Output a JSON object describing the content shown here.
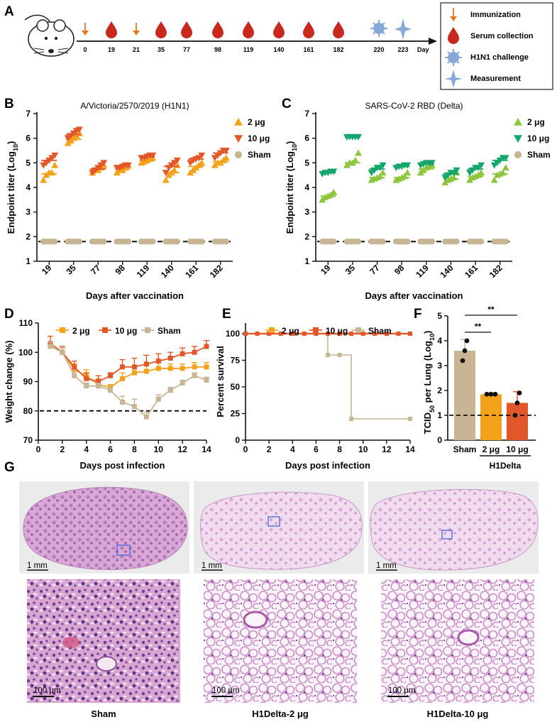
{
  "panels": {
    "A": "A",
    "B": "B",
    "C": "C",
    "D": "D",
    "E": "E",
    "F": "F",
    "G": "G"
  },
  "timeline": {
    "ticks": [
      "0",
      "19",
      "21",
      "35",
      "77",
      "98",
      "119",
      "140",
      "161",
      "182",
      "220",
      "223"
    ],
    "immunization_days": [
      "0",
      "21"
    ],
    "serum_days": [
      "19",
      "35",
      "77",
      "98",
      "119",
      "140",
      "161",
      "182"
    ],
    "challenge_day": "220",
    "measurement_day": "223",
    "day_label": "Day",
    "legend": [
      "Immunization",
      "Serum collection",
      "H1N1 challenge",
      "Measurement"
    ]
  },
  "colors": {
    "orange_2ug": "#F4A21A",
    "red_10ug": "#E2572A",
    "green_2ug": "#8CC63F",
    "teal_10ug": "#14A66B",
    "sham": "#C7B594",
    "blood": "#C8281E",
    "virus": "#86A9D8"
  },
  "chart_data": [
    {
      "panel": "B",
      "type": "scatter",
      "title": "A/Victoria/2570/2019 (H1N1)",
      "xlabel": "Days after vaccination",
      "ylabel_main": "Endpoint titer (Log",
      "ylabel_sub": "10",
      "ylabel_end": ")",
      "categories": [
        "19",
        "35",
        "77",
        "98",
        "119",
        "140",
        "161",
        "182"
      ],
      "ylim": [
        1,
        7
      ],
      "yticks": [
        "1",
        "2",
        "3",
        "4",
        "5",
        "6",
        "7"
      ],
      "detection_limit": 1.8,
      "series": [
        {
          "name": "2 μg",
          "marker": "triangle-up",
          "color": "#F4A21A",
          "means": [
            4.55,
            5.95,
            4.75,
            4.75,
            5.1,
            4.6,
            4.85,
            5.05
          ],
          "points": [
            [
              4.3,
              4.5,
              4.6,
              4.6,
              4.9
            ],
            [
              5.8,
              5.9,
              6.0,
              6.1,
              6.2
            ],
            [
              4.6,
              4.7,
              4.7,
              4.8,
              4.9
            ],
            [
              4.6,
              4.7,
              4.7,
              4.8,
              4.9
            ],
            [
              5.0,
              5.05,
              5.1,
              5.15,
              5.2
            ],
            [
              4.3,
              4.5,
              4.6,
              4.7,
              4.9
            ],
            [
              4.6,
              4.7,
              4.8,
              4.9,
              5.0
            ],
            [
              4.9,
              5.0,
              5.0,
              5.1,
              5.2
            ]
          ]
        },
        {
          "name": "10 μg",
          "marker": "triangle-down",
          "color": "#E2572A",
          "means": [
            5.1,
            6.15,
            4.75,
            4.85,
            5.25,
            4.85,
            5.15,
            5.4
          ],
          "points": [
            [
              4.9,
              5.0,
              5.1,
              5.2,
              5.3
            ],
            [
              6.0,
              6.1,
              6.2,
              6.3,
              6.35
            ],
            [
              4.6,
              4.7,
              4.8,
              4.9,
              5.0
            ],
            [
              4.8,
              4.8,
              4.85,
              4.9,
              4.9
            ],
            [
              5.2,
              5.2,
              5.25,
              5.3,
              5.3
            ],
            [
              4.6,
              4.8,
              4.9,
              5.0,
              5.1
            ],
            [
              5.0,
              5.1,
              5.15,
              5.2,
              5.3
            ],
            [
              5.2,
              5.3,
              5.4,
              5.5,
              5.5
            ]
          ]
        },
        {
          "name": "Sham",
          "marker": "circle",
          "color": "#C7B594",
          "means": [
            1.8,
            1.8,
            1.8,
            1.8,
            1.8,
            1.8,
            1.8,
            1.8
          ],
          "points": [
            [
              1.8,
              1.8,
              1.8,
              1.8,
              1.8
            ],
            [
              1.8,
              1.8,
              1.8,
              1.8,
              1.8
            ],
            [
              1.8,
              1.8,
              1.8,
              1.8,
              1.8
            ],
            [
              1.8,
              1.8,
              1.8,
              1.8,
              1.8
            ],
            [
              1.8,
              1.8,
              1.8,
              1.8,
              1.8
            ],
            [
              1.8,
              1.8,
              1.8,
              1.8,
              1.8
            ],
            [
              1.8,
              1.8,
              1.8,
              1.8,
              1.8
            ],
            [
              1.8,
              1.8,
              1.8,
              1.8,
              1.8
            ]
          ]
        }
      ]
    },
    {
      "panel": "C",
      "type": "scatter",
      "title": "SARS-CoV-2 RBD (Delta)",
      "xlabel": "Days after vaccination",
      "ylabel_main": "Endpoint titer (Log",
      "ylabel_sub": "10",
      "ylabel_end": ")",
      "categories": [
        "19",
        "35",
        "77",
        "98",
        "119",
        "140",
        "161",
        "182"
      ],
      "ylim": [
        1,
        7
      ],
      "yticks": [
        "1",
        "2",
        "3",
        "4",
        "5",
        "6",
        "7"
      ],
      "detection_limit": 1.8,
      "series": [
        {
          "name": "2 μg",
          "marker": "triangle-up",
          "color": "#8CC63F",
          "means": [
            3.65,
            5.0,
            4.4,
            4.4,
            4.75,
            4.35,
            4.45,
            4.55
          ],
          "points": [
            [
              3.5,
              3.6,
              3.65,
              3.7,
              3.8
            ],
            [
              4.9,
              5.0,
              5.0,
              5.1,
              5.4
            ],
            [
              4.3,
              4.35,
              4.4,
              4.45,
              4.6
            ],
            [
              4.3,
              4.35,
              4.4,
              4.45,
              4.6
            ],
            [
              4.6,
              4.7,
              4.8,
              4.85,
              4.9
            ],
            [
              4.2,
              4.3,
              4.35,
              4.4,
              4.6
            ],
            [
              4.3,
              4.4,
              4.45,
              4.5,
              4.6
            ],
            [
              4.3,
              4.5,
              4.55,
              4.6,
              4.8
            ]
          ]
        },
        {
          "name": "10 μg",
          "marker": "triangle-down",
          "color": "#14A66B",
          "means": [
            4.6,
            6.05,
            4.75,
            4.85,
            4.95,
            4.55,
            4.75,
            5.1
          ],
          "points": [
            [
              4.55,
              4.6,
              4.6,
              4.65,
              4.65
            ],
            [
              6.05,
              6.05,
              6.05,
              6.05,
              6.05
            ],
            [
              4.6,
              4.7,
              4.8,
              4.8,
              4.9
            ],
            [
              4.8,
              4.85,
              4.85,
              4.9,
              4.9
            ],
            [
              4.9,
              4.95,
              5.0,
              5.0,
              5.0
            ],
            [
              4.4,
              4.5,
              4.6,
              4.6,
              4.7
            ],
            [
              4.6,
              4.7,
              4.8,
              4.8,
              4.9
            ],
            [
              4.9,
              5.0,
              5.1,
              5.2,
              5.2
            ]
          ]
        },
        {
          "name": "Sham",
          "marker": "circle",
          "color": "#C7B594",
          "means": [
            1.8,
            1.8,
            1.8,
            1.8,
            1.8,
            1.8,
            1.8,
            1.8
          ],
          "points": [
            [
              1.8,
              1.8,
              1.8,
              1.8,
              1.8
            ],
            [
              1.8,
              1.8,
              1.8,
              1.8,
              1.8
            ],
            [
              1.8,
              1.8,
              1.8,
              1.8,
              1.8
            ],
            [
              1.8,
              1.8,
              1.8,
              1.8,
              1.8
            ],
            [
              1.8,
              1.8,
              1.8,
              1.8,
              1.8
            ],
            [
              1.8,
              1.8,
              1.8,
              1.8,
              1.8
            ],
            [
              1.8,
              1.8,
              1.8,
              1.8,
              1.8
            ],
            [
              1.8,
              1.8,
              1.8,
              1.8,
              1.8
            ]
          ]
        }
      ]
    },
    {
      "panel": "D",
      "type": "line",
      "xlabel": "Days post infection",
      "ylabel": "Weight change (%)",
      "xlim": [
        0,
        14
      ],
      "xticks": [
        "0",
        "2",
        "4",
        "6",
        "8",
        "10",
        "12",
        "14"
      ],
      "ylim": [
        70,
        110
      ],
      "yticks": [
        "70",
        "80",
        "90",
        "100",
        "110"
      ],
      "reference_line": 80,
      "x": [
        1,
        2,
        3,
        4,
        5,
        6,
        7,
        8,
        9,
        10,
        11,
        12,
        13,
        14
      ],
      "series": [
        {
          "name": "2 μg",
          "color": "#F4A21A",
          "values": [
            102,
            100,
            94,
            92,
            89,
            88,
            91,
            93,
            93.5,
            94.5,
            94.5,
            94.5,
            95,
            95
          ],
          "errors": [
            1.5,
            1.5,
            2,
            2,
            2,
            1,
            2,
            2,
            2,
            2,
            1.5,
            1.5,
            1.5,
            1.5
          ]
        },
        {
          "name": "10 μg",
          "color": "#E2572A",
          "values": [
            103,
            100,
            95,
            91,
            90,
            92,
            95,
            95,
            96,
            97,
            98,
            99.5,
            100,
            102
          ],
          "errors": [
            2.5,
            2,
            2,
            2,
            2,
            1,
            2.5,
            3,
            3,
            2.5,
            2,
            2,
            2,
            2
          ]
        },
        {
          "name": "Sham",
          "color": "#C7B594",
          "values": [
            102,
            100,
            92,
            88.5,
            88.5,
            87,
            83,
            81.5,
            78,
            84,
            87,
            89.5,
            92,
            90.5
          ],
          "errors": [
            1.5,
            1.5,
            1.5,
            1,
            1,
            1.5,
            2,
            2.5,
            1.5,
            1.5,
            1,
            1,
            1,
            1
          ]
        }
      ]
    },
    {
      "panel": "E",
      "type": "line",
      "xlabel": "Days post infection",
      "ylabel": "Percent survival",
      "xlim": [
        0,
        14
      ],
      "xticks": [
        "0",
        "2",
        "4",
        "6",
        "8",
        "10",
        "12",
        "14"
      ],
      "ylim": [
        0,
        110
      ],
      "yticks": [
        "0",
        "25",
        "50",
        "75",
        "100"
      ],
      "series": [
        {
          "name": "2 μg",
          "color": "#F4A21A",
          "x": [
            0,
            1,
            2,
            3,
            4,
            5,
            6,
            7,
            8,
            9,
            10,
            11,
            12,
            13,
            14
          ],
          "values": [
            100,
            100,
            100,
            100,
            100,
            100,
            100,
            100,
            100,
            100,
            100,
            100,
            100,
            100,
            100
          ]
        },
        {
          "name": "10 μg",
          "color": "#E2572A",
          "x": [
            0,
            1,
            2,
            3,
            4,
            5,
            6,
            7,
            8,
            9,
            10,
            11,
            12,
            13,
            14
          ],
          "values": [
            100,
            100,
            100,
            100,
            100,
            100,
            100,
            100,
            100,
            100,
            100,
            100,
            100,
            100,
            100
          ]
        },
        {
          "name": "Sham",
          "color": "#C7B594",
          "step": true,
          "x": [
            0,
            1,
            2,
            3,
            4,
            5,
            6,
            7,
            8,
            9,
            14
          ],
          "values": [
            100,
            100,
            100,
            100,
            100,
            100,
            100,
            80,
            80,
            20,
            20
          ]
        }
      ]
    },
    {
      "panel": "F",
      "type": "bar",
      "ylabel_main": "TCID",
      "ylabel_sub": "50",
      "ylabel_mid": " per Lung (Log",
      "ylabel_sub2": "10",
      "ylabel_end": ")",
      "categories": [
        "Sham",
        "2 μg",
        "10 μg"
      ],
      "group_label": "H1Delta",
      "ylim": [
        0,
        5
      ],
      "yticks": [
        "0",
        "1",
        "2",
        "3",
        "4",
        "5"
      ],
      "detection_limit": 1,
      "values": [
        3.6,
        1.85,
        1.5
      ],
      "errors": [
        0.45,
        0.05,
        0.45
      ],
      "colors": [
        "#C7B594",
        "#F4A21A",
        "#E2572A"
      ],
      "points": [
        [
          3.2,
          3.6,
          4.0
        ],
        [
          1.85,
          1.85,
          1.85
        ],
        [
          1.0,
          1.5,
          1.9
        ]
      ],
      "significance": [
        {
          "from": "Sham",
          "to": "2 μg",
          "label": "**"
        },
        {
          "from": "Sham",
          "to": "10 μg",
          "label": "**"
        }
      ]
    }
  ],
  "histology": {
    "scale_overview": "1 mm",
    "scale_detail": "100 μm",
    "captions": [
      "Sham",
      "H1Delta-2 μg",
      "H1Delta-10 μg"
    ]
  }
}
